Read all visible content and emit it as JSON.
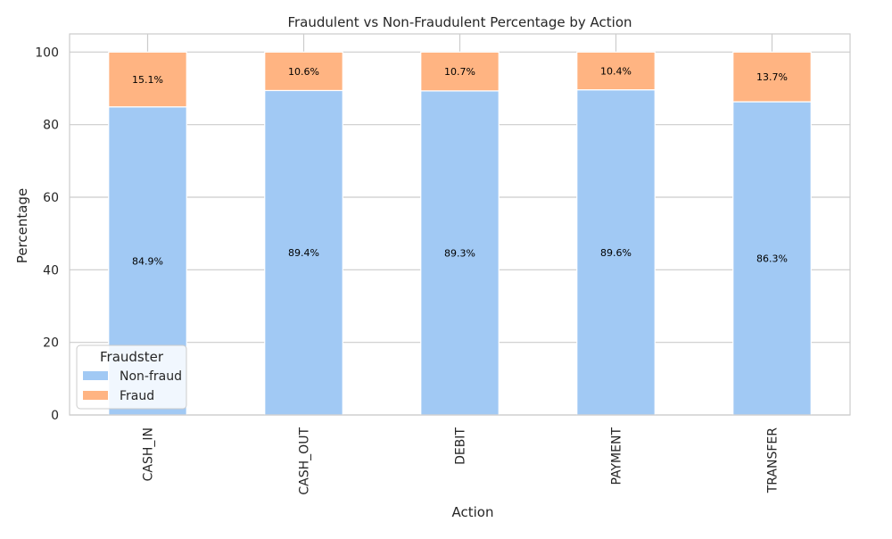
{
  "chart_data": {
    "type": "bar",
    "stacked": true,
    "title": "Fraudulent vs Non-Fraudulent Percentage by Action",
    "xlabel": "Action",
    "ylabel": "Percentage",
    "categories": [
      "CASH_IN",
      "CASH_OUT",
      "DEBIT",
      "PAYMENT",
      "TRANSFER"
    ],
    "series": [
      {
        "name": "Non-fraud",
        "values": [
          84.9,
          89.4,
          89.3,
          89.6,
          86.3
        ],
        "labels": [
          "84.9%",
          "89.4%",
          "89.3%",
          "89.6%",
          "86.3%"
        ],
        "color": "#a1c9f4"
      },
      {
        "name": "Fraud",
        "values": [
          15.1,
          10.6,
          10.7,
          10.4,
          13.7
        ],
        "labels": [
          "15.1%",
          "10.6%",
          "10.7%",
          "10.4%",
          "13.7%"
        ],
        "color": "#ffb482"
      }
    ],
    "ylim": [
      0,
      105
    ],
    "yticks": [
      0,
      20,
      40,
      60,
      80,
      100
    ],
    "grid": true,
    "legend": {
      "title": "Fraudster",
      "position": "lower-left"
    }
  }
}
